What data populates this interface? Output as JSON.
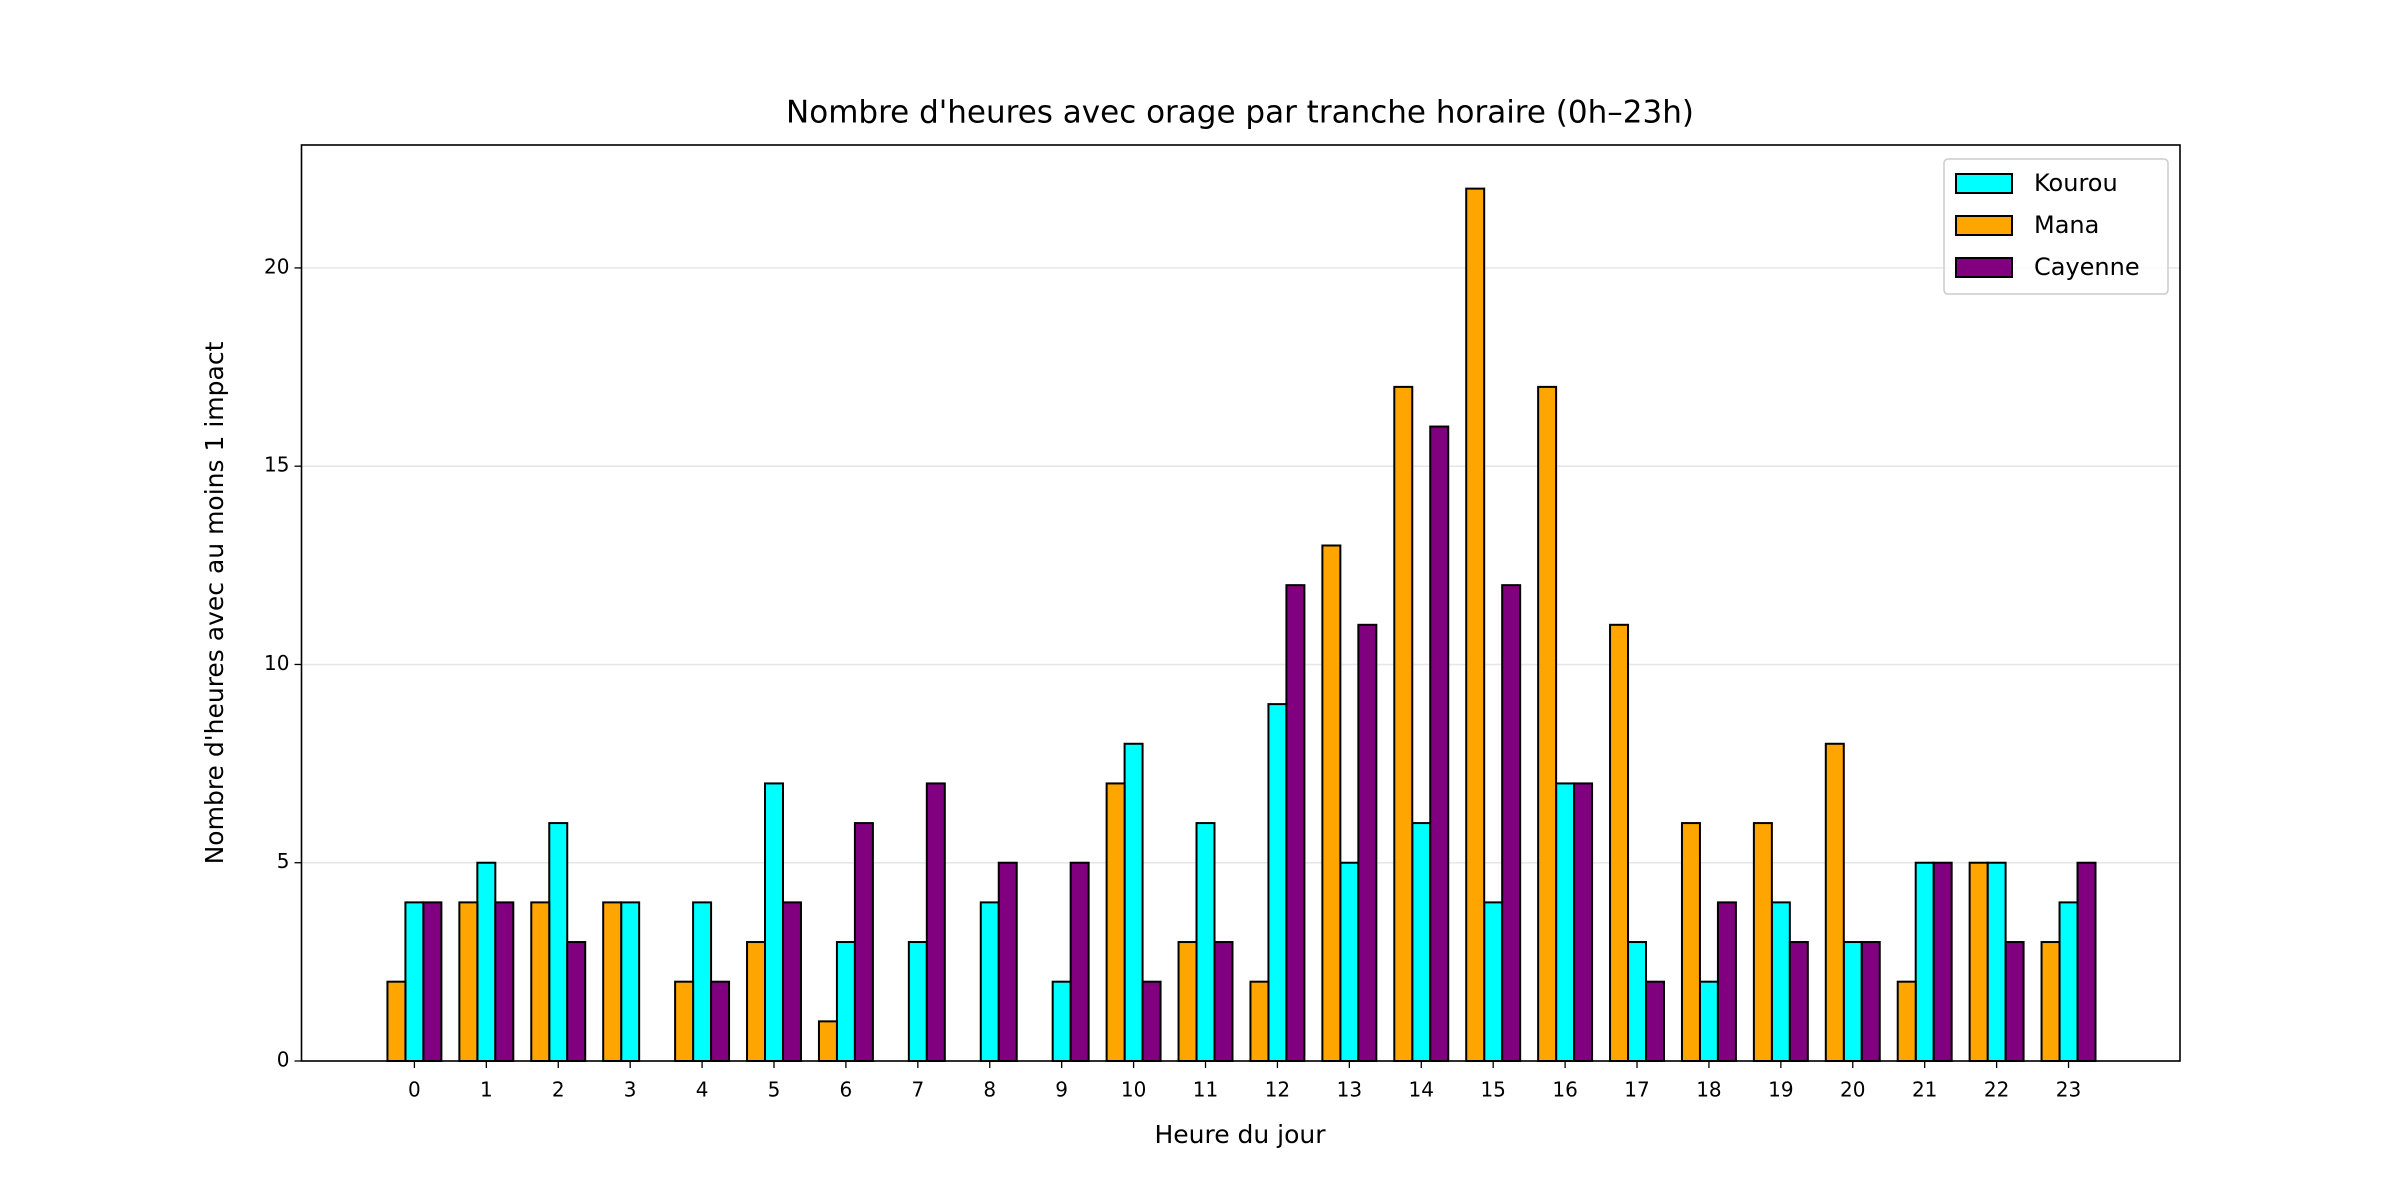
{
  "chart_data": {
    "type": "bar",
    "title": "Nombre d'heures avec orage par tranche horaire (0h–23h)",
    "x_label": "Heure du jour",
    "y_label": "Nombre d'heures avec au moins 1 impact",
    "x": [
      0,
      1,
      2,
      3,
      4,
      5,
      6,
      7,
      8,
      9,
      10,
      11,
      12,
      13,
      14,
      15,
      16,
      17,
      18,
      19,
      20,
      21,
      22,
      23
    ],
    "series": [
      {
        "name": "Kourou",
        "color": "#00ffff",
        "values": [
          4,
          5,
          6,
          4,
          4,
          7,
          3,
          3,
          4,
          2,
          8,
          6,
          9,
          5,
          6,
          4,
          7,
          3,
          2,
          4,
          3,
          5,
          5,
          4
        ]
      },
      {
        "name": "Mana",
        "color": "#ffa500",
        "values": [
          2,
          4,
          4,
          4,
          2,
          3,
          1,
          0,
          0,
          0,
          7,
          3,
          2,
          13,
          17,
          22,
          17,
          11,
          6,
          6,
          8,
          2,
          5,
          3
        ]
      },
      {
        "name": "Cayenne",
        "color": "#800080",
        "values": [
          4,
          4,
          3,
          0,
          2,
          4,
          6,
          7,
          5,
          5,
          2,
          3,
          12,
          11,
          16,
          12,
          7,
          2,
          4,
          3,
          3,
          5,
          3,
          5
        ]
      }
    ],
    "xlim": [
      -1.57,
      24.55
    ],
    "xticks": [
      0,
      1,
      2,
      3,
      4,
      5,
      6,
      7,
      8,
      9,
      10,
      11,
      12,
      13,
      14,
      15,
      16,
      17,
      18,
      19,
      20,
      21,
      22,
      23
    ],
    "ylim": [
      0,
      23.1
    ],
    "yticks": [
      0,
      5,
      10,
      15,
      20
    ],
    "grid": true,
    "legend": "upper right"
  }
}
